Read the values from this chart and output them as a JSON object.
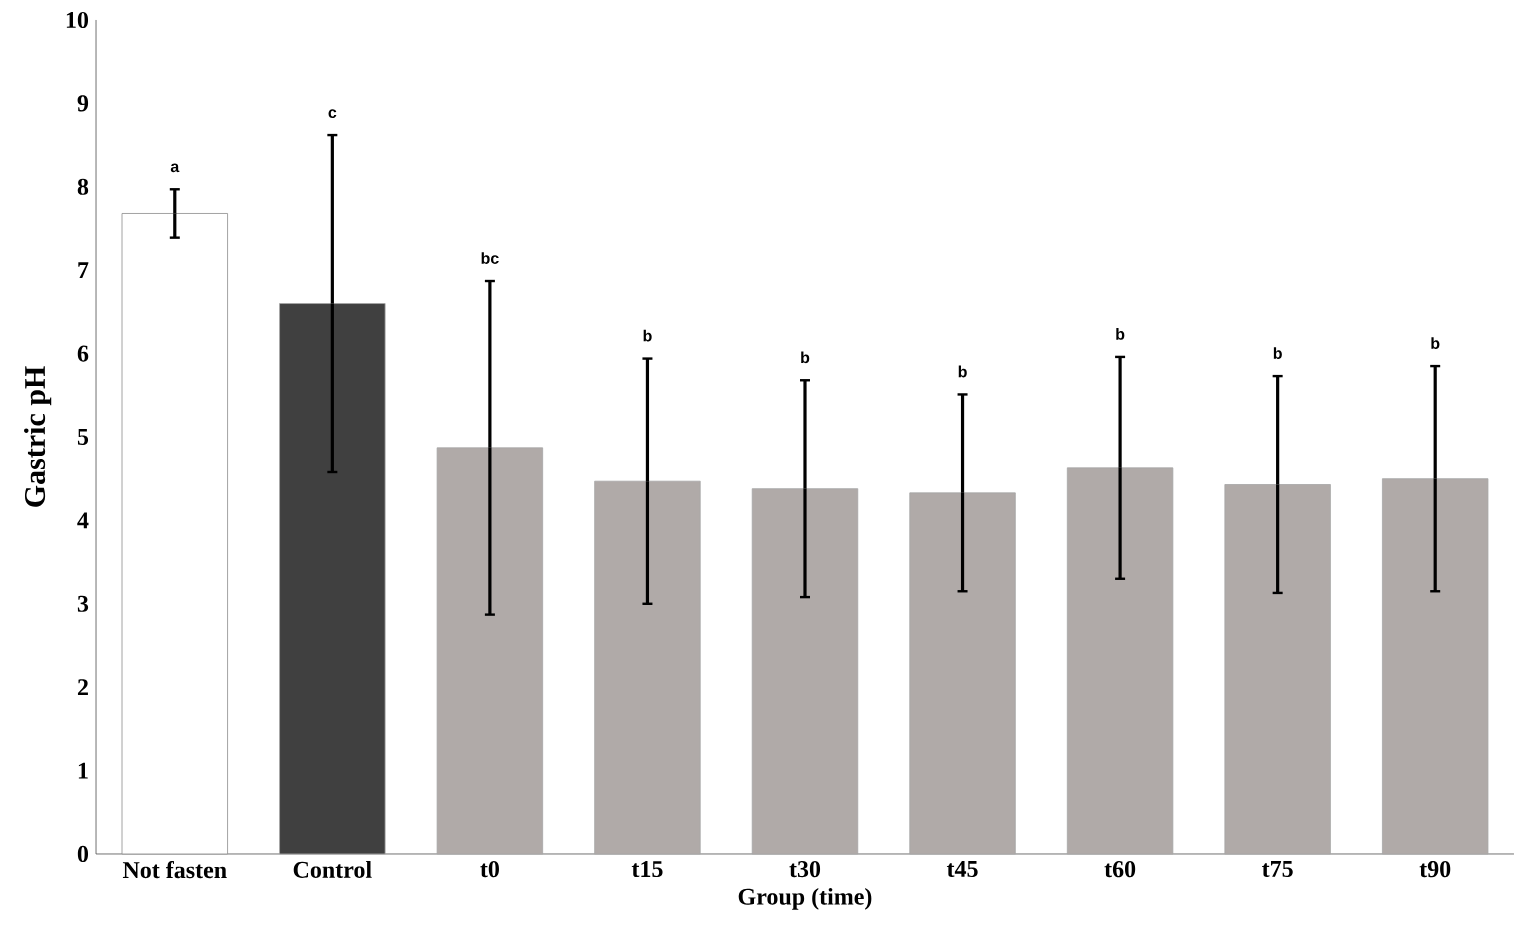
{
  "chart_data": {
    "type": "bar",
    "xlabel": "Group (time)",
    "ylabel": "Gastric pH",
    "categories": [
      "Not fasten",
      "Control",
      "t0",
      "t15",
      "t30",
      "t45",
      "t60",
      "t75",
      "t90"
    ],
    "values": [
      7.68,
      6.6,
      4.87,
      4.47,
      4.38,
      4.33,
      4.63,
      4.43,
      4.5
    ],
    "errors": [
      0.29,
      2.02,
      2.0,
      1.47,
      1.3,
      1.18,
      1.33,
      1.3,
      1.35
    ],
    "colors": [
      "#ffffff",
      "#404040",
      "#b0aaa8",
      "#b0aaa8",
      "#b0aaa8",
      "#b0aaa8",
      "#b0aaa8",
      "#b0aaa8",
      "#b0aaa8"
    ],
    "ylim": [
      0,
      10
    ],
    "yticks": [
      0,
      1,
      2,
      3,
      4,
      5,
      6,
      7,
      8,
      9,
      10
    ],
    "annotations": [
      "a",
      "c",
      "bc",
      "b",
      "b",
      "b",
      "b",
      "b",
      "b"
    ]
  }
}
